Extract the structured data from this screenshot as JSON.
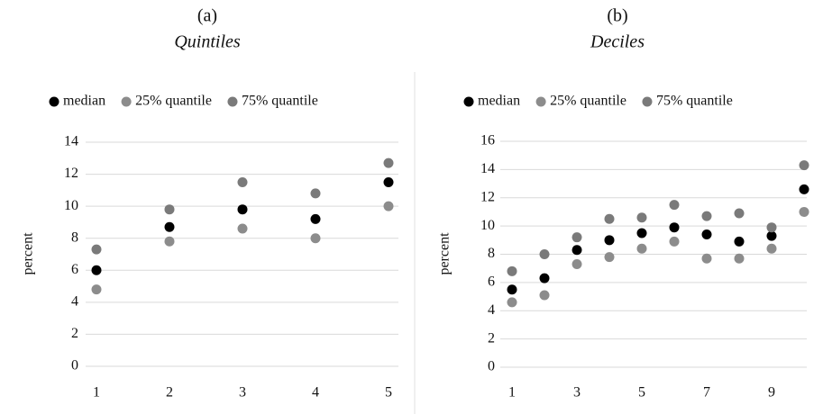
{
  "chart_data": [
    {
      "type": "scatter",
      "panel_label": "(a)",
      "title": "Quintiles",
      "y_label": "percent",
      "categories": [
        1,
        2,
        3,
        4,
        5
      ],
      "series": [
        {
          "name": "median",
          "color": "#000000",
          "values": [
            6.0,
            8.7,
            9.8,
            9.2,
            11.5
          ]
        },
        {
          "name": "25% quantile",
          "color": "#8c8c8c",
          "values": [
            4.8,
            7.8,
            8.6,
            8.0,
            10.0
          ]
        },
        {
          "name": "75% quantile",
          "color": "#7a7a7a",
          "values": [
            7.3,
            9.8,
            11.5,
            10.8,
            12.7
          ]
        }
      ],
      "ylim": [
        0,
        14
      ],
      "yticks": [
        0,
        2,
        4,
        6,
        8,
        10,
        12,
        14
      ],
      "grid": true,
      "legend": "top"
    },
    {
      "type": "scatter",
      "panel_label": "(b)",
      "title": "Deciles",
      "y_label": "percent",
      "categories": [
        1,
        null,
        3,
        null,
        5,
        null,
        7,
        null,
        9,
        null
      ],
      "series": [
        {
          "name": "median",
          "color": "#000000",
          "values": [
            5.5,
            6.3,
            8.3,
            9.0,
            9.5,
            9.9,
            9.4,
            8.9,
            9.3,
            12.6
          ]
        },
        {
          "name": "25% quantile",
          "color": "#8c8c8c",
          "values": [
            4.6,
            5.1,
            7.3,
            7.8,
            8.4,
            8.9,
            7.7,
            7.7,
            8.4,
            11.0
          ]
        },
        {
          "name": "75% quantile",
          "color": "#7a7a7a",
          "values": [
            6.8,
            8.0,
            9.2,
            10.5,
            10.6,
            11.5,
            10.7,
            10.9,
            9.9,
            14.3
          ]
        }
      ],
      "ylim": [
        0,
        16
      ],
      "yticks": [
        0,
        2,
        4,
        6,
        8,
        10,
        12,
        14,
        16
      ],
      "grid": true,
      "legend": "top"
    }
  ]
}
